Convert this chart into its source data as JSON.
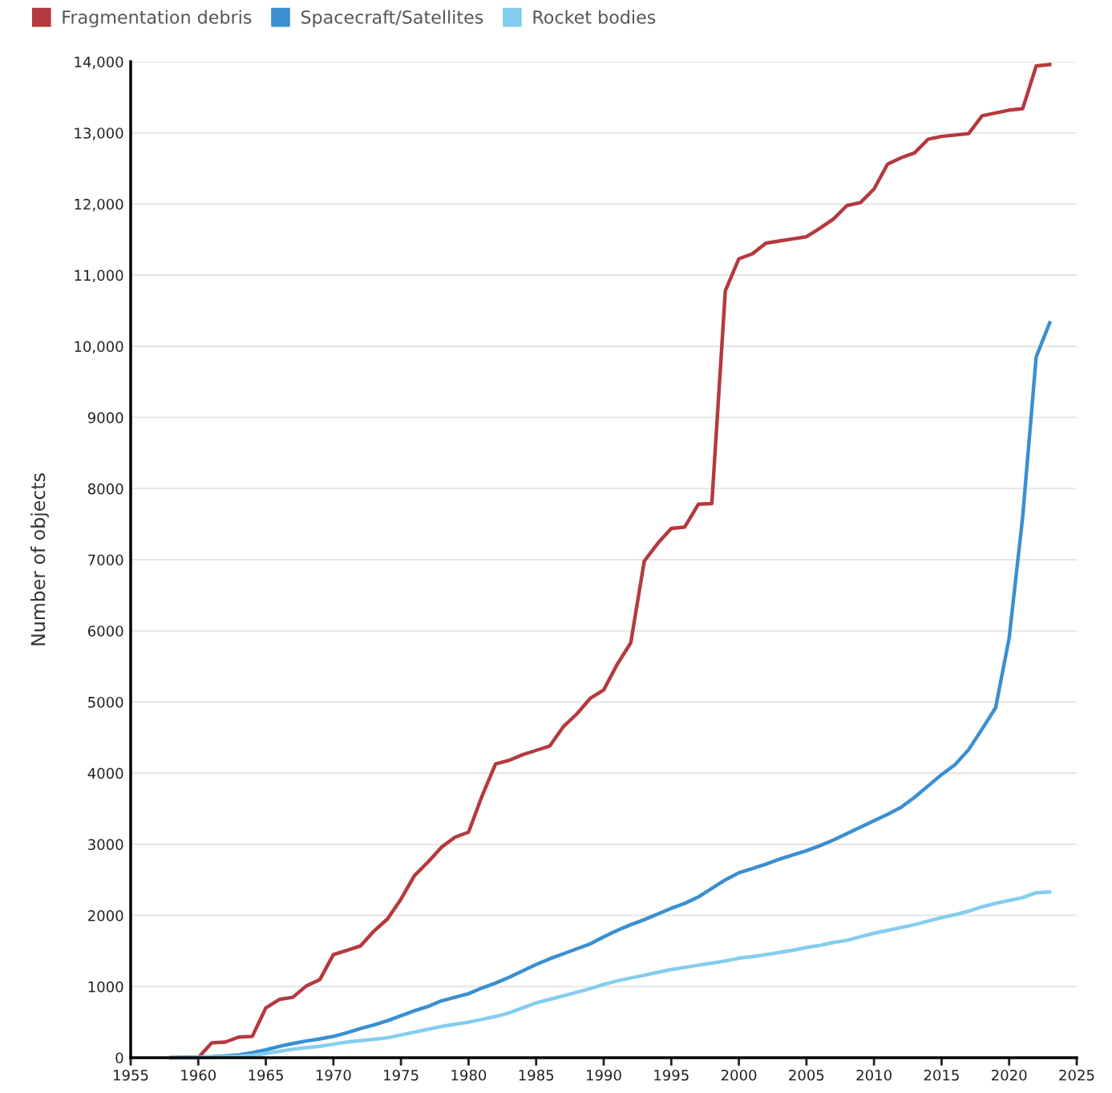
{
  "chart_data": {
    "type": "line",
    "ylabel": "Number of objects",
    "x": [
      1958,
      1959,
      1960,
      1961,
      1962,
      1963,
      1964,
      1965,
      1966,
      1967,
      1968,
      1969,
      1970,
      1971,
      1972,
      1973,
      1974,
      1975,
      1976,
      1977,
      1978,
      1979,
      1980,
      1981,
      1982,
      1983,
      1984,
      1985,
      1986,
      1987,
      1988,
      1989,
      1990,
      1991,
      1992,
      1993,
      1994,
      1995,
      1996,
      1997,
      1998,
      1999,
      2000,
      2001,
      2002,
      2003,
      2004,
      2005,
      2006,
      2007,
      2008,
      2009,
      2010,
      2011,
      2012,
      2013,
      2014,
      2015,
      2016,
      2017,
      2018,
      2019,
      2020,
      2021,
      2022,
      2023
    ],
    "series": [
      {
        "name": "Fragmentation debris",
        "color": "#b5393f",
        "values": [
          0,
          0,
          0,
          210,
          220,
          290,
          300,
          700,
          820,
          850,
          1010,
          1100,
          1450,
          1510,
          1570,
          1780,
          1950,
          2230,
          2560,
          2750,
          2960,
          3100,
          3170,
          3680,
          4130,
          4180,
          4260,
          4320,
          4380,
          4650,
          4830,
          5050,
          5170,
          5530,
          5830,
          6980,
          7230,
          7440,
          7460,
          7780,
          7790,
          10780,
          11230,
          11300,
          11450,
          11480,
          11510,
          11540,
          11660,
          11790,
          11980,
          12020,
          12210,
          12560,
          12650,
          12720,
          12910,
          12950,
          12970,
          12990,
          13240,
          13280,
          13320,
          13340,
          13940,
          13960
        ]
      },
      {
        "name": "Spacecraft/Satellites",
        "color": "#3a8fd0",
        "values": [
          0,
          5,
          10,
          15,
          25,
          40,
          70,
          110,
          160,
          200,
          235,
          265,
          300,
          350,
          410,
          460,
          520,
          590,
          660,
          720,
          800,
          850,
          900,
          980,
          1050,
          1130,
          1220,
          1310,
          1390,
          1460,
          1530,
          1600,
          1700,
          1790,
          1870,
          1940,
          2020,
          2100,
          2170,
          2260,
          2380,
          2500,
          2600,
          2660,
          2720,
          2790,
          2850,
          2910,
          2980,
          3060,
          3150,
          3240,
          3330,
          3420,
          3520,
          3660,
          3820,
          3980,
          4120,
          4330,
          4620,
          4920,
          5900,
          7600,
          9850,
          10330
        ]
      },
      {
        "name": "Rocket bodies",
        "color": "#84cdef",
        "values": [
          0,
          0,
          5,
          10,
          15,
          20,
          35,
          60,
          90,
          120,
          140,
          160,
          190,
          220,
          240,
          260,
          280,
          320,
          360,
          400,
          440,
          470,
          500,
          540,
          580,
          630,
          700,
          770,
          820,
          870,
          920,
          970,
          1030,
          1080,
          1120,
          1160,
          1200,
          1240,
          1270,
          1300,
          1330,
          1360,
          1400,
          1420,
          1450,
          1480,
          1510,
          1550,
          1580,
          1620,
          1650,
          1700,
          1750,
          1790,
          1830,
          1870,
          1920,
          1970,
          2010,
          2060,
          2120,
          2170,
          2210,
          2250,
          2320,
          2330
        ]
      }
    ],
    "xlim": [
      1955,
      2025
    ],
    "xticks": [
      1955,
      1960,
      1965,
      1970,
      1975,
      1980,
      1985,
      1990,
      1995,
      2000,
      2005,
      2010,
      2015,
      2020,
      2025
    ],
    "ylim": [
      0,
      14000
    ],
    "yticks": [
      0,
      1000,
      2000,
      3000,
      4000,
      5000,
      6000,
      7000,
      8000,
      9000,
      {
        "value": 10000,
        "label": "10,000"
      },
      {
        "value": 11000,
        "label": "11,000"
      },
      {
        "value": 12000,
        "label": "12,000"
      },
      {
        "value": 13000,
        "label": "13,000"
      },
      {
        "value": 14000,
        "label": "14,000"
      }
    ],
    "grid": "y",
    "legend": "top left",
    "line_style": "solid",
    "marker": "none"
  }
}
